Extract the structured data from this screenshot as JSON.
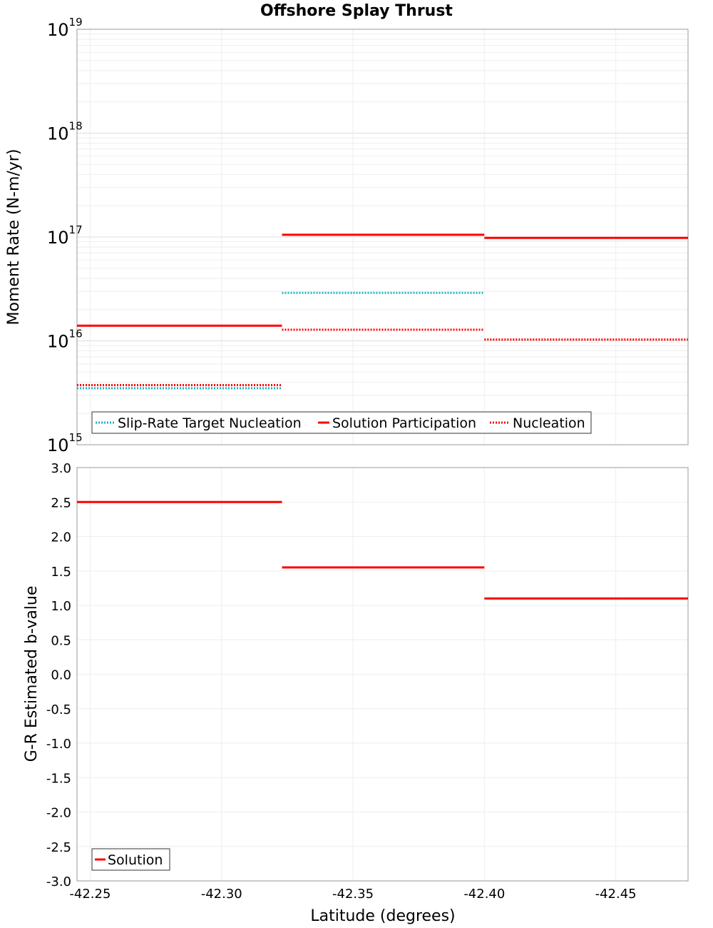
{
  "chart_data": [
    {
      "type": "line",
      "title": "Offshore Splay Thrust",
      "ylabel": "Moment Rate (N-m/yr)",
      "xlabel": "",
      "yscale": "log",
      "ylim": [
        1000000000000000.0,
        1e+19
      ],
      "xlim": [
        -42.245,
        -42.4775
      ],
      "x_reversed": true,
      "y_ticks": [
        {
          "base": "10",
          "exp": "15"
        },
        {
          "base": "10",
          "exp": "16"
        },
        {
          "base": "10",
          "exp": "17"
        },
        {
          "base": "10",
          "exp": "18"
        },
        {
          "base": "10",
          "exp": "19"
        }
      ],
      "grid": true,
      "legend_position": "bottom-left",
      "series": [
        {
          "name": "Slip-Rate Target Nucleation",
          "color": "#1fb5c4",
          "style": "dotted",
          "segments": [
            {
              "x": [
                -42.245,
                -42.323
              ],
              "y": 3500000000000000.0
            },
            {
              "x": [
                -42.323,
                -42.4
              ],
              "y": 2.9e+16
            }
          ]
        },
        {
          "name": "Solution Participation",
          "color": "#ff0000",
          "style": "solid",
          "segments": [
            {
              "x": [
                -42.245,
                -42.323
              ],
              "y": 1.4e+16
            },
            {
              "x": [
                -42.323,
                -42.4
              ],
              "y": 1.05e+17
            },
            {
              "x": [
                -42.4,
                -42.4775
              ],
              "y": 9.8e+16
            }
          ]
        },
        {
          "name": "Nucleation",
          "color": "#ff0000",
          "style": "dotted",
          "segments": [
            {
              "x": [
                -42.245,
                -42.323
              ],
              "y": 3750000000000000.0
            },
            {
              "x": [
                -42.323,
                -42.4
              ],
              "y": 1.28e+16
            },
            {
              "x": [
                -42.4,
                -42.4775
              ],
              "y": 1.03e+16
            }
          ]
        }
      ]
    },
    {
      "type": "line",
      "title": "",
      "ylabel": "G-R Estimated b-value",
      "xlabel": "Latitude (degrees)",
      "ylim": [
        -3.0,
        3.0
      ],
      "xlim": [
        -42.245,
        -42.4775
      ],
      "x_reversed": true,
      "y_ticks": [
        "-3.0",
        "-2.5",
        "-2.0",
        "-1.5",
        "-1.0",
        "-0.5",
        "0.0",
        "0.5",
        "1.0",
        "1.5",
        "2.0",
        "2.5",
        "3.0"
      ],
      "x_ticks": [
        "-42.25",
        "-42.30",
        "-42.35",
        "-42.40",
        "-42.45"
      ],
      "grid": true,
      "legend_position": "bottom-left",
      "series": [
        {
          "name": "Solution",
          "color": "#ff0000",
          "style": "solid",
          "segments": [
            {
              "x": [
                -42.245,
                -42.323
              ],
              "y": 2.5
            },
            {
              "x": [
                -42.323,
                -42.4
              ],
              "y": 1.55
            },
            {
              "x": [
                -42.4,
                -42.4775
              ],
              "y": 1.1
            }
          ]
        }
      ]
    }
  ]
}
